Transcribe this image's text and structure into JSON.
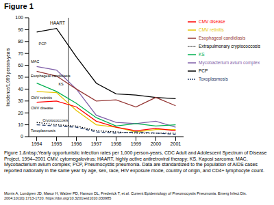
{
  "header": "Figure 1",
  "chart_data": {
    "type": "line",
    "y_label": "Incidence/1,000 person-years",
    "x": [
      1994,
      1995,
      1996,
      1997,
      1998,
      1999,
      2000,
      2001
    ],
    "xlim": [
      1993.6,
      2001.4
    ],
    "xticks": [
      1994,
      1995,
      1996,
      1997,
      1998,
      1999,
      2000,
      2001
    ],
    "ylim": [
      0,
      100
    ],
    "yticks": [
      0,
      10,
      20,
      30,
      40,
      50,
      60,
      70,
      80,
      90,
      100
    ],
    "grid": false,
    "legend": "upper right",
    "marker": "none",
    "series": [
      {
        "name": "PCP",
        "color": "#000000",
        "line_style": "solid",
        "values": [
          88,
          91,
          67,
          45,
          36,
          35,
          33,
          32
        ]
      },
      {
        "name": "Mycobacterium avium complex",
        "color": "#7f5fa8",
        "line_style": "solid",
        "values": [
          59,
          56,
          40,
          18,
          12,
          11,
          13,
          8
        ]
      },
      {
        "name": "Esophageal candidiasis",
        "color": "#953735",
        "line_style": "solid",
        "values": [
          55,
          51,
          40,
          30,
          31,
          25,
          33,
          26
        ]
      },
      {
        "name": "CMV retinitis",
        "color": "#e6c400",
        "line_style": "solid",
        "values": [
          38,
          37,
          22,
          10,
          8,
          4,
          6,
          6
        ]
      },
      {
        "name": "CMV disease",
        "color": "#ff0000",
        "line_style": "solid",
        "values": [
          29,
          30,
          25,
          13,
          8,
          5,
          7,
          5
        ]
      },
      {
        "name": "KS",
        "color": "#00b050",
        "line_style": "solid",
        "values": [
          45,
          38,
          28,
          16,
          9,
          11,
          9,
          10
        ]
      },
      {
        "name": "Extrapulmonary cryptococcosis",
        "color": "#000000",
        "line_style": "dotted",
        "values": [
          12,
          10,
          9,
          5,
          4,
          3,
          3,
          3
        ]
      },
      {
        "name": "Toxoplasmosis",
        "color": "#1f3864",
        "line_style": "dashed",
        "values": [
          10,
          9,
          8,
          4,
          3,
          4,
          3,
          2
        ]
      }
    ],
    "reference_lines": [
      {
        "x": 1995.6,
        "label": "HAART"
      }
    ],
    "annotations": [
      {
        "text": "PCP",
        "x": 1994.1,
        "y": 78
      },
      {
        "text": "MAC",
        "x": 1993.7,
        "y": 63
      },
      {
        "text": "Esophageal candidiasis",
        "x": 1993.7,
        "y": 51
      },
      {
        "text": "KS",
        "x": 1995.1,
        "y": 44
      },
      {
        "text": "CMV retinitis",
        "x": 1993.7,
        "y": 33
      },
      {
        "text": "CMV disease",
        "x": 1993.7,
        "y": 24
      },
      {
        "text": "Cryptococcosis",
        "x": 1994.3,
        "y": 14
      },
      {
        "text": "Toxoplasmosis",
        "x": 1993.7,
        "y": 5
      }
    ]
  },
  "caption": "Figure 1.&nbsp;Yearly opportunistic infection rates per 1,000 person-years, CDC Adult and Adolescent Spectrum of Disease Project, 1994–2001 CMV, cytomegalovirus; HAART, highly active antiretroviral therapy; KS, Kaposi sarcoma; MAC, Mycobacterium avium complex; PCP, Pneumocystis pneumonia. Data are standardized to the population of AIDS cases reported nationally in the same year by age, sex, race, HIV exposure mode, country of origin, and CD4+ lymphocyte count.",
  "citation": "Morris A, Lundgren JD, Masur H, Walzer PD, Hanson DL, Frederick T, et al. Current Epidemiology of Pneumocystis Pneumonia. Emerg Infect Dis. 2004;10(10):1713-1720. https://doi.org/10.3201/eid1010.030985"
}
